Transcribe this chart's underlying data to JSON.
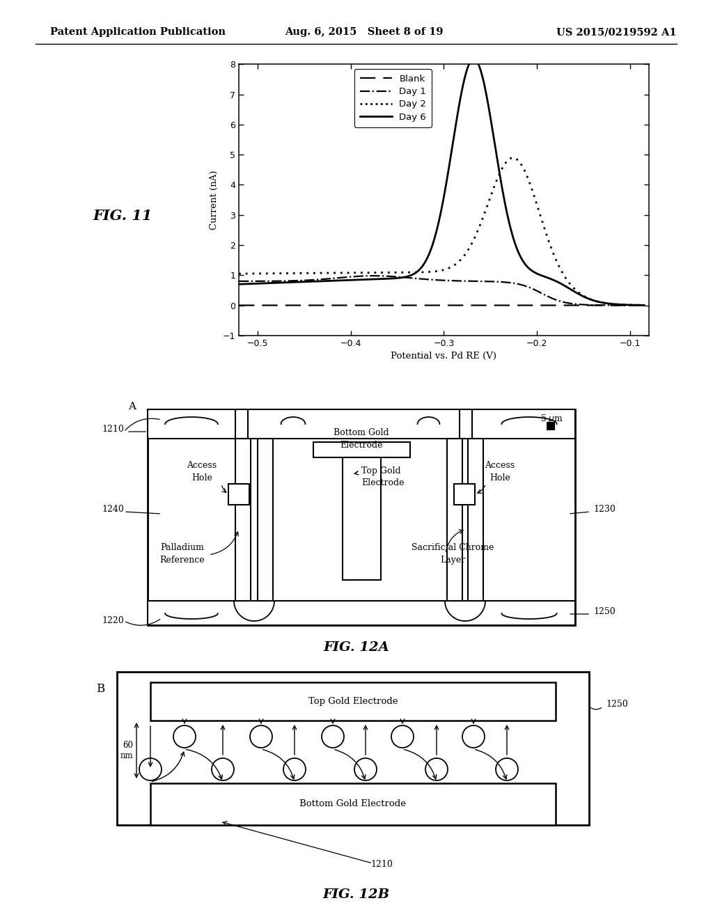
{
  "header_left": "Patent Application Publication",
  "header_mid": "Aug. 6, 2015   Sheet 8 of 19",
  "header_right": "US 2015/0219592 A1",
  "fig11_label": "FIG. 11",
  "fig12a_label": "FIG. 12A",
  "fig12b_label": "FIG. 12B",
  "plot_xlabel": "Potential vs. Pd RE (V)",
  "plot_ylabel": "Current (nA)",
  "plot_xlim": [
    -0.52,
    -0.08
  ],
  "plot_ylim": [
    -1,
    8
  ],
  "plot_yticks": [
    -1,
    0,
    1,
    2,
    3,
    4,
    5,
    6,
    7,
    8
  ],
  "plot_xticks": [
    -0.5,
    -0.4,
    -0.3,
    -0.2,
    -0.1
  ],
  "legend_entries": [
    "Blank",
    "Day 1",
    "Day 2",
    "Day 6"
  ],
  "background": "#ffffff"
}
